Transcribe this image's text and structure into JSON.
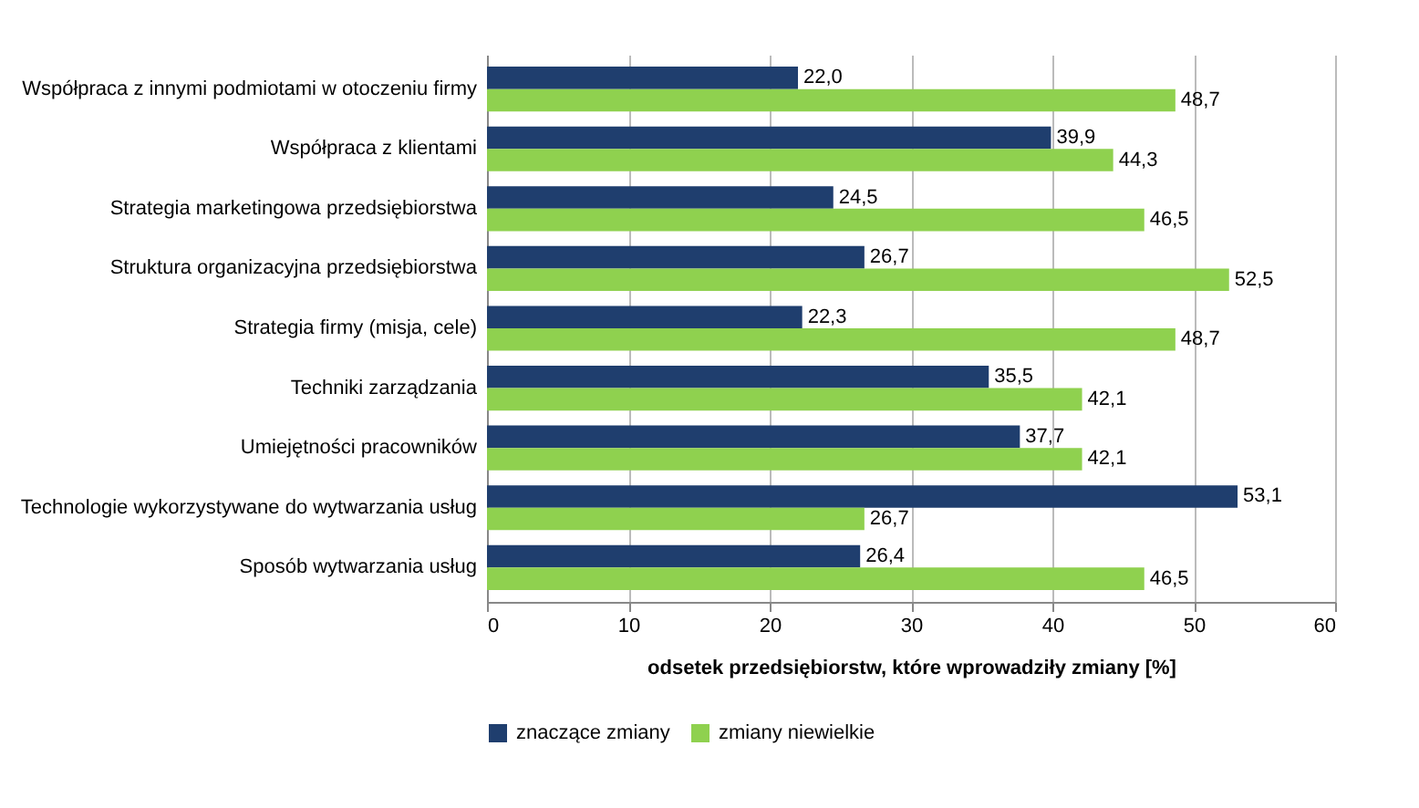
{
  "chart_data": {
    "type": "bar",
    "orientation": "horizontal",
    "categories": [
      "Współpraca z innymi podmiotami w otoczeniu firmy",
      "Współpraca z klientami",
      "Strategia marketingowa przedsiębiorstwa",
      "Struktura organizacyjna przedsiębiorstwa",
      "Strategia firmy (misja, cele)",
      "Techniki zarządzania",
      "Umiejętności pracowników",
      "Technologie wykorzystywane do wytwarzania usług",
      "Sposób wytwarzania usług"
    ],
    "series": [
      {
        "name": "znaczące zmiany",
        "color": "#1f3e6e",
        "values": [
          22.0,
          39.9,
          24.5,
          26.7,
          22.3,
          35.5,
          37.7,
          53.1,
          26.4
        ],
        "value_labels": [
          "22,0",
          "39,9",
          "24,5",
          "26,7",
          "22,3",
          "35,5",
          "37,7",
          "53,1",
          "26,4"
        ]
      },
      {
        "name": "zmiany niewielkie",
        "color": "#8fd14f",
        "values": [
          48.7,
          44.3,
          46.5,
          52.5,
          48.7,
          42.1,
          42.1,
          26.7,
          46.5
        ],
        "value_labels": [
          "48,7",
          "44,3",
          "46,5",
          "52,5",
          "48,7",
          "42,1",
          "42,1",
          "26,7",
          "46,5"
        ]
      }
    ],
    "xlabel": "odsetek przedsiębiorstw, które wprowadziły zmiany [%]",
    "xlim": [
      0,
      60
    ],
    "xticks": [
      0,
      10,
      20,
      30,
      40,
      50,
      60
    ],
    "grid": "x",
    "legend": "bottom"
  }
}
